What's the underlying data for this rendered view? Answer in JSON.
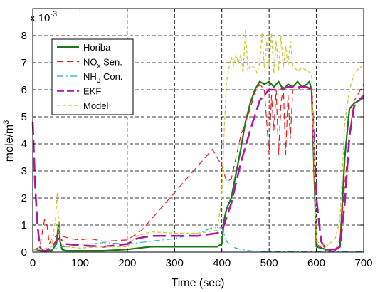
{
  "chart_data": {
    "type": "line",
    "xlabel": "Time (sec)",
    "ylabel": "mole/m",
    "ylabel_sup": "3",
    "exponent": "x 10",
    "exponent_sup": "-3",
    "xlim": [
      0,
      700
    ],
    "ylim": [
      0,
      9
    ],
    "xticks": [
      "0",
      "100",
      "200",
      "300",
      "400",
      "500",
      "600",
      "700"
    ],
    "yticks": [
      "0",
      "1",
      "2",
      "3",
      "4",
      "5",
      "6",
      "7",
      "8"
    ],
    "grid": true,
    "legend_position": "top-left",
    "series": [
      {
        "name": "Horiba",
        "color": "#1a7a1a",
        "dash": "solid",
        "x": [
          0,
          8,
          15,
          25,
          40,
          50,
          55,
          58,
          62,
          70,
          100,
          150,
          200,
          250,
          300,
          350,
          390,
          400,
          405,
          410,
          420,
          430,
          440,
          450,
          460,
          470,
          480,
          490,
          500,
          510,
          520,
          530,
          540,
          550,
          560,
          570,
          580,
          585,
          590,
          600,
          620,
          640,
          650,
          660,
          670,
          680,
          690,
          700
        ],
        "y": [
          0.1,
          0.1,
          0.05,
          0.05,
          0.05,
          0.3,
          1.1,
          0.4,
          0.1,
          0.05,
          0.05,
          0.05,
          0.1,
          0.2,
          0.2,
          0.2,
          0.2,
          0.3,
          1.2,
          1.6,
          2.0,
          2.9,
          3.8,
          4.8,
          5.5,
          6.0,
          6.3,
          6.2,
          6.3,
          6.1,
          6.3,
          6.0,
          6.2,
          6.1,
          6.3,
          6.1,
          6.2,
          6.3,
          6.0,
          0.2,
          0.1,
          0.1,
          0.2,
          3.5,
          5.3,
          5.5,
          5.6,
          5.7
        ]
      },
      {
        "name": "NO",
        "name_sub": "x",
        "name_suffix": " Sen.",
        "color": "#e8191b",
        "dash": "9 5",
        "x": [
          0,
          5,
          15,
          25,
          30,
          35,
          40,
          50,
          55,
          60,
          80,
          100,
          120,
          150,
          200,
          230,
          260,
          300,
          340,
          380,
          400,
          410,
          420,
          440,
          460,
          470,
          480,
          490,
          495,
          500,
          505,
          510,
          515,
          520,
          525,
          530,
          535,
          540,
          545,
          550,
          560,
          570,
          580,
          590,
          600,
          620,
          640,
          650,
          660,
          670,
          680,
          690,
          700
        ],
        "y": [
          0.1,
          0.1,
          0.2,
          1.2,
          1.0,
          0.3,
          0.5,
          0.6,
          0.7,
          0.6,
          0.5,
          0.45,
          0.5,
          0.4,
          0.45,
          0.8,
          1.4,
          2.2,
          3.0,
          3.8,
          3.2,
          2.6,
          2.7,
          4.3,
          5.3,
          5.9,
          6.2,
          6.0,
          4.8,
          3.6,
          5.8,
          4.5,
          6.0,
          3.6,
          5.5,
          6.1,
          3.6,
          5.8,
          4.2,
          6.0,
          6.0,
          6.1,
          6.1,
          6.0,
          0.3,
          0.05,
          0.05,
          0.5,
          2.5,
          4.4,
          5.6,
          5.9,
          6.2
        ]
      },
      {
        "name": "NH",
        "name_sub": "3",
        "name_suffix": " Con.",
        "color": "#16b4c2",
        "dash": "9 4 2 4",
        "x": [
          0,
          20,
          40,
          60,
          80,
          100,
          120,
          150,
          200,
          250,
          300,
          350,
          380,
          400,
          410,
          420,
          440,
          460,
          500,
          550,
          600,
          650,
          700
        ],
        "y": [
          0.1,
          0.1,
          0.1,
          0.2,
          0.2,
          0.3,
          0.3,
          0.35,
          0.3,
          0.4,
          0.5,
          0.7,
          0.9,
          0.9,
          0.4,
          0.2,
          0.1,
          0.05,
          0.02,
          0.02,
          0.02,
          0.02,
          0.02
        ]
      },
      {
        "name": "EKF",
        "color": "#b0169e",
        "dash": "18 7",
        "x": [
          0,
          5,
          10,
          15,
          20,
          30,
          40,
          50,
          55,
          60,
          70,
          100,
          150,
          200,
          220,
          250,
          300,
          350,
          390,
          400,
          405,
          410,
          420,
          440,
          460,
          480,
          500,
          520,
          540,
          560,
          580,
          590,
          600,
          610,
          620,
          640,
          650,
          660,
          670,
          680,
          690,
          700
        ],
        "y": [
          4.8,
          2.5,
          1.0,
          0.2,
          0.05,
          0.05,
          0.2,
          0.4,
          0.5,
          0.45,
          0.3,
          0.25,
          0.2,
          0.3,
          0.5,
          0.6,
          0.6,
          0.6,
          0.7,
          0.8,
          1.0,
          1.3,
          1.8,
          3.3,
          4.5,
          5.6,
          6.0,
          6.0,
          6.1,
          6.1,
          6.1,
          6.0,
          2.0,
          0.4,
          0.1,
          0.1,
          0.2,
          1.8,
          4.3,
          5.4,
          5.6,
          5.8
        ]
      },
      {
        "name": "Model",
        "color": "#c8c83a",
        "dash": "5 3",
        "x": [
          0,
          20,
          40,
          48,
          52,
          55,
          60,
          70,
          100,
          150,
          200,
          220,
          250,
          300,
          350,
          390,
          400,
          405,
          410,
          415,
          420,
          425,
          430,
          435,
          440,
          445,
          450,
          455,
          460,
          470,
          475,
          480,
          485,
          490,
          495,
          500,
          505,
          510,
          515,
          520,
          525,
          530,
          535,
          540,
          545,
          550,
          560,
          570,
          580,
          590,
          600,
          620,
          640,
          650,
          660,
          670,
          680,
          690,
          700
        ],
        "y": [
          0.1,
          0.1,
          0.2,
          1.2,
          2.2,
          1.0,
          0.3,
          0.2,
          0.15,
          0.2,
          0.2,
          0.6,
          0.75,
          0.7,
          0.7,
          0.8,
          2.0,
          4.5,
          6.3,
          6.8,
          7.2,
          6.9,
          7.3,
          7.0,
          7.3,
          6.6,
          8.2,
          6.7,
          6.9,
          6.8,
          6.6,
          7.0,
          8.1,
          6.8,
          7.8,
          6.9,
          8.1,
          6.6,
          7.8,
          6.7,
          8.0,
          6.8,
          7.6,
          6.9,
          7.8,
          6.9,
          6.7,
          6.8,
          6.7,
          6.6,
          0.4,
          0.2,
          0.5,
          1.2,
          4.8,
          6.0,
          6.6,
          6.8,
          6.9
        ]
      }
    ]
  }
}
